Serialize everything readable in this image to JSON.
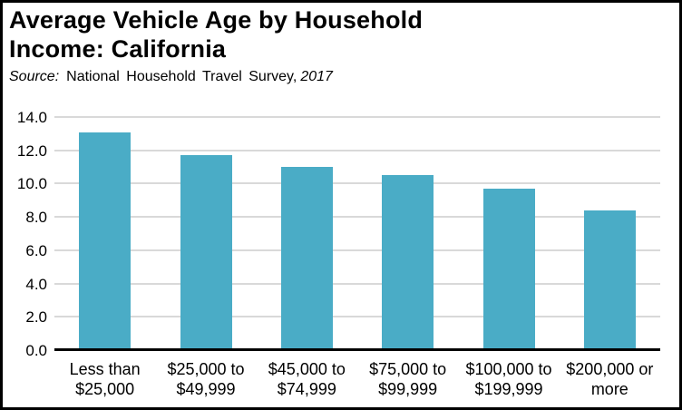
{
  "frame": {
    "background": "#FFFFFF",
    "border_color": "#000000"
  },
  "header": {
    "title": "Average Vehicle Age by Household\nIncome: California",
    "source_label": "Source:",
    "source_text": "National Household Travel Survey,",
    "source_year": "2017"
  },
  "chart_data": {
    "type": "bar",
    "title": "Average Vehicle Age by Household Income: California",
    "subtitle": "Source: National Household Travel Survey, 2017",
    "categories": [
      "Less than\n$25,000",
      "$25,000 to\n$49,999",
      "$45,000 to\n$74,999",
      "$75,000 to\n$99,999",
      "$100,000 to\n$199,999",
      "$200,000 or\nmore"
    ],
    "values": [
      13.1,
      11.7,
      11.0,
      10.5,
      9.7,
      8.4
    ],
    "xlabel": "",
    "ylabel": "",
    "ylim": [
      0,
      14
    ],
    "ytick_step": 2,
    "ytick_decimals": 1,
    "grid": true,
    "legend": false,
    "bar_color": "#4AACC6",
    "gridline_color": "#D9D9D9",
    "axis_color": "#000000",
    "text_color": "#000000"
  }
}
